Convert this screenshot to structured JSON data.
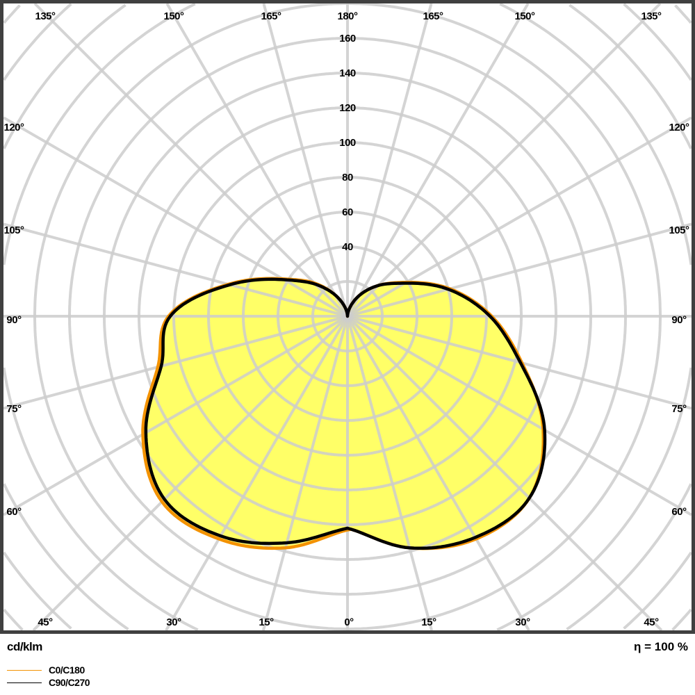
{
  "chart_data": {
    "type": "polar",
    "unit_label": "cd/klm",
    "efficiency_label": "η = 100 %",
    "radial_ticks": [
      40,
      60,
      80,
      100,
      120,
      140,
      160
    ],
    "radial_step": 20,
    "angle_labels": {
      "top": [
        "135°",
        "150°",
        "165°",
        "180°",
        "165°",
        "150°",
        "135°"
      ],
      "left": [
        "120°",
        "105°",
        "90°",
        "75°",
        "60°"
      ],
      "right": [
        "120°",
        "105°",
        "90°",
        "75°",
        "60°"
      ],
      "bottom": [
        "45°",
        "30°",
        "15°",
        "0°",
        "15°",
        "30°",
        "45°"
      ]
    },
    "gamma_angles": [
      0,
      15,
      30,
      45,
      60,
      75,
      90,
      105,
      120,
      135,
      150,
      165,
      180
    ],
    "series": [
      {
        "name": "C0/C180",
        "color": "#f39200",
        "right_values": [
          122,
          138,
          148,
          148,
          130,
          104,
          83,
          61,
          39,
          25,
          14,
          5,
          0
        ],
        "left_values": [
          123,
          138,
          148,
          151,
          136,
          113,
          103,
          71,
          43,
          27,
          14,
          5,
          0
        ]
      },
      {
        "name": "C90/C270",
        "color": "#000000",
        "right_values": [
          122,
          138,
          147,
          148,
          131,
          103,
          82,
          60,
          38,
          25,
          14,
          5,
          0
        ],
        "left_values": [
          122,
          135,
          146,
          149,
          134,
          111,
          102,
          70,
          42,
          26,
          14,
          5,
          0
        ]
      }
    ],
    "fill_color": "#ffff66",
    "grid_color": "#cccccc",
    "grid": true,
    "legend_position": "bottom-left"
  }
}
